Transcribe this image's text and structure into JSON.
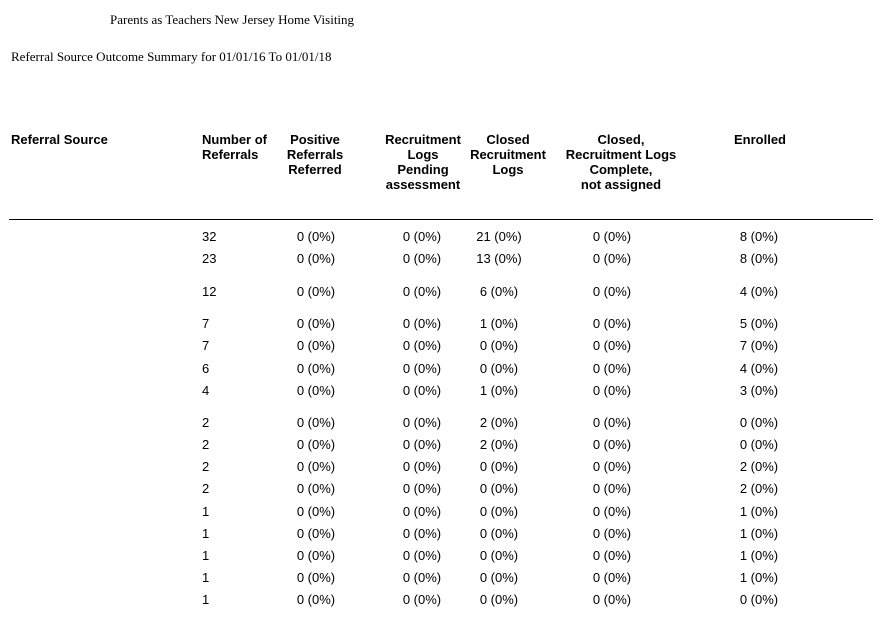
{
  "report": {
    "organization": "Parents as Teachers New Jersey Home Visiting",
    "title": "Referral Source Outcome Summary for 01/01/16 To 01/01/18"
  },
  "columns": {
    "referral_source": "Referral Source",
    "number_of_referrals": "Number of\nReferrals",
    "positive_referrals": "Positive\nReferrals\nReferred",
    "recruitment_pending": "Recruitment\nLogs\nPending\nassessment",
    "closed_recruitment": "Closed\nRecruitment\nLogs",
    "closed_complete": "Closed,\nRecruitment Logs\nComplete,\nnot assigned",
    "enrolled": "Enrolled"
  },
  "rows": [
    {
      "source": "",
      "num": "32",
      "pos": "0 (0%)",
      "rec": "0 (0%)",
      "clo": "21 (0%)",
      "cla": "0 (0%)",
      "enr": "8 (0%)"
    },
    {
      "source": "",
      "num": "23",
      "pos": "0 (0%)",
      "rec": "0 (0%)",
      "clo": "13 (0%)",
      "cla": "0 (0%)",
      "enr": "8 (0%)"
    },
    {
      "source": "",
      "num": "12",
      "pos": "0 (0%)",
      "rec": "0 (0%)",
      "clo": "6 (0%)",
      "cla": "0 (0%)",
      "enr": "4 (0%)"
    },
    {
      "source": "",
      "num": "7",
      "pos": "0 (0%)",
      "rec": "0 (0%)",
      "clo": "1 (0%)",
      "cla": "0 (0%)",
      "enr": "5 (0%)"
    },
    {
      "source": "",
      "num": "7",
      "pos": "0 (0%)",
      "rec": "0 (0%)",
      "clo": "0 (0%)",
      "cla": "0 (0%)",
      "enr": "7 (0%)"
    },
    {
      "source": "",
      "num": "6",
      "pos": "0 (0%)",
      "rec": "0 (0%)",
      "clo": "0 (0%)",
      "cla": "0 (0%)",
      "enr": "4 (0%)"
    },
    {
      "source": "",
      "num": "4",
      "pos": "0 (0%)",
      "rec": "0 (0%)",
      "clo": "1 (0%)",
      "cla": "0 (0%)",
      "enr": "3 (0%)"
    },
    {
      "source": "",
      "num": "2",
      "pos": "0 (0%)",
      "rec": "0 (0%)",
      "clo": "2 (0%)",
      "cla": "0 (0%)",
      "enr": "0 (0%)"
    },
    {
      "source": "",
      "num": "2",
      "pos": "0 (0%)",
      "rec": "0 (0%)",
      "clo": "2 (0%)",
      "cla": "0 (0%)",
      "enr": "0 (0%)"
    },
    {
      "source": "",
      "num": "2",
      "pos": "0 (0%)",
      "rec": "0 (0%)",
      "clo": "0 (0%)",
      "cla": "0 (0%)",
      "enr": "2 (0%)"
    },
    {
      "source": "",
      "num": "2",
      "pos": "0 (0%)",
      "rec": "0 (0%)",
      "clo": "0 (0%)",
      "cla": "0 (0%)",
      "enr": "2 (0%)"
    },
    {
      "source": "",
      "num": "1",
      "pos": "0 (0%)",
      "rec": "0 (0%)",
      "clo": "0 (0%)",
      "cla": "0 (0%)",
      "enr": "1 (0%)"
    },
    {
      "source": "",
      "num": "1",
      "pos": "0 (0%)",
      "rec": "0 (0%)",
      "clo": "0 (0%)",
      "cla": "0 (0%)",
      "enr": "1 (0%)"
    },
    {
      "source": "",
      "num": "1",
      "pos": "0 (0%)",
      "rec": "0 (0%)",
      "clo": "0 (0%)",
      "cla": "0 (0%)",
      "enr": "1 (0%)"
    },
    {
      "source": "",
      "num": "1",
      "pos": "0 (0%)",
      "rec": "0 (0%)",
      "clo": "0 (0%)",
      "cla": "0 (0%)",
      "enr": "1 (0%)"
    },
    {
      "source": "",
      "num": "1",
      "pos": "0 (0%)",
      "rec": "0 (0%)",
      "clo": "0 (0%)",
      "cla": "0 (0%)",
      "enr": "0 (0%)"
    }
  ]
}
